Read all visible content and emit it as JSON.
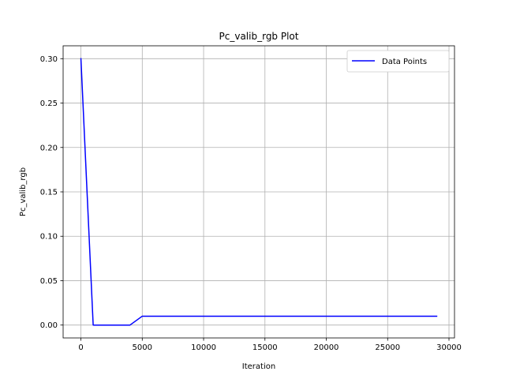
{
  "chart_data": {
    "type": "line",
    "title": "Pc_valib_rgb Plot",
    "xlabel": "Iteration",
    "ylabel": "Pc_valib_rgb",
    "xlim": [
      -1450,
      30450
    ],
    "ylim": [
      -0.0145,
      0.3145
    ],
    "xticks": [
      0,
      5000,
      10000,
      15000,
      20000,
      25000,
      30000
    ],
    "xtick_labels": [
      "0",
      "5000",
      "10000",
      "15000",
      "20000",
      "25000",
      "30000"
    ],
    "yticks": [
      0.0,
      0.05,
      0.1,
      0.15,
      0.2,
      0.25,
      0.3
    ],
    "ytick_labels": [
      "0.00",
      "0.05",
      "0.10",
      "0.15",
      "0.20",
      "0.25",
      "0.30"
    ],
    "grid": true,
    "legend_position": "top-right",
    "series": [
      {
        "name": "Data Points",
        "color": "#0000ff",
        "x": [
          0,
          1000,
          2000,
          3000,
          4000,
          5000,
          6000,
          7000,
          8000,
          9000,
          10000,
          11000,
          12000,
          13000,
          14000,
          15000,
          16000,
          17000,
          18000,
          19000,
          20000,
          21000,
          22000,
          23000,
          24000,
          25000,
          26000,
          27000,
          28000,
          29000
        ],
        "y": [
          0.3,
          0.0,
          0.0,
          0.0,
          0.0,
          0.01,
          0.01,
          0.01,
          0.01,
          0.01,
          0.01,
          0.01,
          0.01,
          0.01,
          0.01,
          0.01,
          0.01,
          0.01,
          0.01,
          0.01,
          0.01,
          0.01,
          0.01,
          0.01,
          0.01,
          0.01,
          0.01,
          0.01,
          0.01,
          0.01
        ]
      }
    ]
  }
}
